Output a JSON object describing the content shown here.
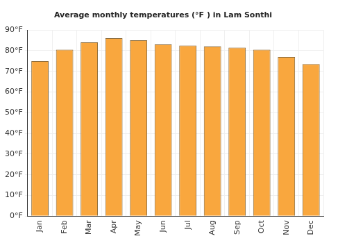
{
  "chart_data": {
    "type": "bar",
    "title": "Average monthly temperatures (°F ) in Lam Sonthi",
    "categories": [
      "Jan",
      "Feb",
      "Mar",
      "Apr",
      "May",
      "Jun",
      "Jul",
      "Aug",
      "Sep",
      "Oct",
      "Nov",
      "Dec"
    ],
    "values": [
      75,
      80.5,
      84,
      86,
      85,
      83,
      82.5,
      82,
      81.5,
      80.5,
      77,
      73.5
    ],
    "color": "#f9a73e",
    "ylim": [
      0,
      90
    ],
    "yticks": [
      {
        "value": 0,
        "label": "0°F"
      },
      {
        "value": 10,
        "label": "10°F"
      },
      {
        "value": 20,
        "label": "20°F"
      },
      {
        "value": 30,
        "label": "30°F"
      },
      {
        "value": 40,
        "label": "40°F"
      },
      {
        "value": 50,
        "label": "50°F"
      },
      {
        "value": 60,
        "label": "60°F"
      },
      {
        "value": 70,
        "label": "70°F"
      },
      {
        "value": 80,
        "label": "80°F"
      },
      {
        "value": 90,
        "label": "90°F"
      }
    ],
    "grid": true
  }
}
